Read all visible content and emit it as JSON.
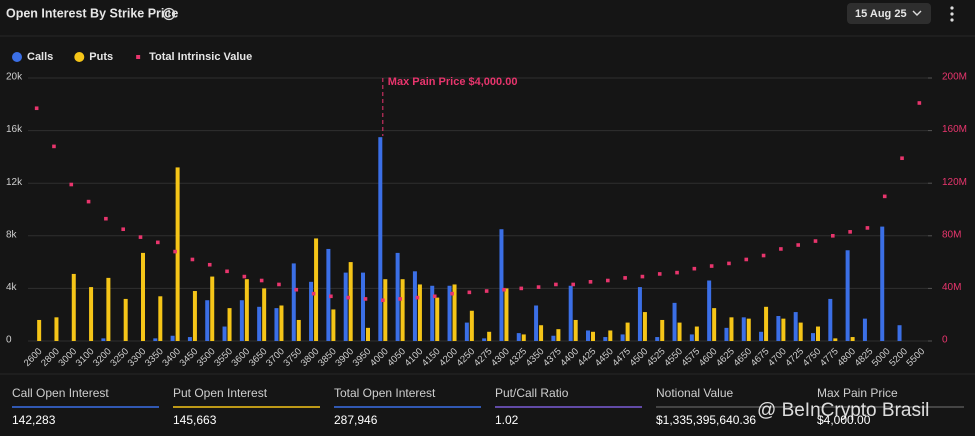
{
  "header": {
    "title": "Open Interest By Strike Price",
    "date": "15 Aug 25"
  },
  "chart_data": {
    "type": "bar",
    "categories": [
      "2600",
      "2800",
      "3000",
      "3100",
      "3200",
      "3250",
      "3300",
      "3350",
      "3400",
      "3450",
      "3500",
      "3550",
      "3600",
      "3650",
      "3700",
      "3750",
      "3800",
      "3850",
      "3900",
      "3950",
      "4000",
      "4050",
      "4100",
      "4150",
      "4200",
      "4250",
      "4275",
      "4300",
      "4325",
      "4350",
      "4375",
      "4400",
      "4425",
      "4450",
      "4475",
      "4500",
      "4525",
      "4550",
      "4575",
      "4600",
      "4625",
      "4650",
      "4675",
      "4700",
      "4725",
      "4750",
      "4775",
      "4800",
      "4825",
      "5000",
      "5200",
      "5500"
    ],
    "series": [
      {
        "name": "Calls",
        "color": "#3b6fe6",
        "values": [
          0,
          0,
          0,
          0,
          200,
          0,
          0,
          200,
          400,
          300,
          3100,
          1100,
          3100,
          2600,
          2500,
          5900,
          4500,
          7000,
          5200,
          5200,
          15500,
          6700,
          5300,
          4200,
          4200,
          1400,
          200,
          8500,
          600,
          2700,
          400,
          4200,
          800,
          300,
          500,
          4100,
          300,
          2900,
          500,
          4600,
          1000,
          1800,
          700,
          1900,
          2200,
          600,
          3200,
          6900,
          1700,
          8700,
          1200,
          0
        ]
      },
      {
        "name": "Puts",
        "color": "#f5c518",
        "values": [
          1600,
          1800,
          5100,
          4100,
          4800,
          3200,
          6700,
          3400,
          13200,
          3800,
          4900,
          2500,
          4700,
          4000,
          2700,
          1600,
          7800,
          2400,
          6000,
          1000,
          4700,
          4700,
          4300,
          3300,
          4300,
          2300,
          700,
          4000,
          500,
          1200,
          900,
          1600,
          700,
          800,
          1400,
          2200,
          1600,
          1400,
          1100,
          2500,
          1800,
          1700,
          2600,
          1700,
          1400,
          1100,
          200,
          300,
          0,
          0,
          0,
          0
        ]
      },
      {
        "name": "Total Intrinsic Value",
        "color": "#e8356d",
        "axis": "y2",
        "type": "scatter",
        "values": [
          177000000,
          148000000,
          119000000,
          106000000,
          93000000,
          85000000,
          79000000,
          75000000,
          68000000,
          62000000,
          58000000,
          53000000,
          49000000,
          46000000,
          43000000,
          39000000,
          36000000,
          34000000,
          33000000,
          32000000,
          31000000,
          32000000,
          33000000,
          34000000,
          36000000,
          37000000,
          38000000,
          39000000,
          40000000,
          41000000,
          43000000,
          43000000,
          45000000,
          46000000,
          48000000,
          49000000,
          51000000,
          52000000,
          55000000,
          57000000,
          59000000,
          62000000,
          65000000,
          70000000,
          73000000,
          76000000,
          80000000,
          83000000,
          86000000,
          110000000,
          139000000,
          181000000
        ]
      }
    ],
    "ylim": [
      0,
      20000
    ],
    "yticks": [
      0,
      {
        "value": 4000,
        "label": "4k"
      },
      {
        "value": 8000,
        "label": "8k"
      },
      {
        "value": 12000,
        "label": "12k"
      },
      {
        "value": 16000,
        "label": "16k"
      },
      {
        "value": 20000,
        "label": "20k"
      }
    ],
    "y2lim": [
      0,
      200000000
    ],
    "y2ticks": [
      0,
      {
        "value": 40000000,
        "label": "40M"
      },
      {
        "value": 80000000,
        "label": "80M"
      },
      {
        "value": 120000000,
        "label": "120M"
      },
      {
        "value": 160000000,
        "label": "160M"
      },
      {
        "value": 200000000,
        "label": "200M"
      }
    ],
    "grid": true,
    "legend": "top-left",
    "annotation": {
      "text": "Max Pain Price $4,000.00",
      "x": "4000",
      "color": "#e8356d"
    }
  },
  "stats": [
    {
      "label": "Call Open Interest",
      "value": "142,283",
      "color": "#3b6fe6"
    },
    {
      "label": "Put Open Interest",
      "value": "145,663",
      "color": "#f5c518"
    },
    {
      "label": "Total Open Interest",
      "value": "287,946",
      "color": "#3b6fe6"
    },
    {
      "label": "Put/Call Ratio",
      "value": "1.02",
      "color": "#7b5cd6"
    },
    {
      "label": "Notional Value",
      "value": "$1,335,395,640.36",
      "color": "#555555"
    },
    {
      "label": "Max Pain Price",
      "value": "$4,000.00",
      "color": "#555555"
    }
  ],
  "watermark": "@ BeInCrypto Brasil"
}
